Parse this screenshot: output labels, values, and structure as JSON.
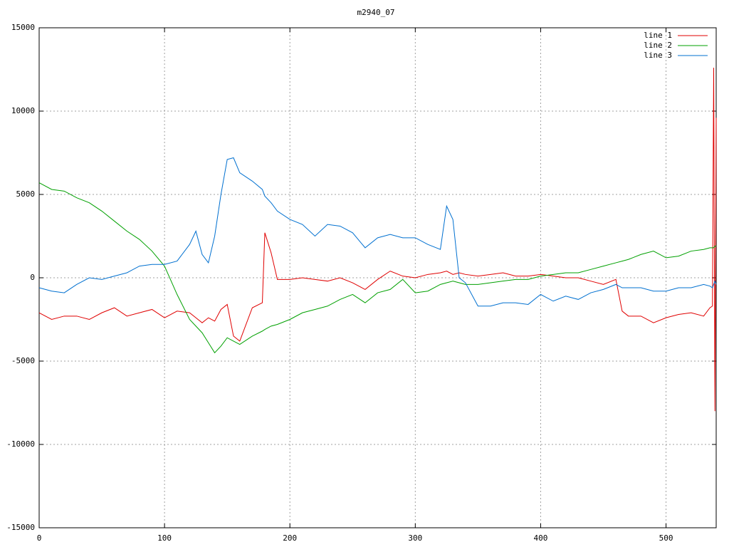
{
  "chart_data": {
    "type": "line",
    "title": "m2940_07",
    "xlim": [
      0,
      540
    ],
    "ylim": [
      -15000,
      15000
    ],
    "xticks": [
      0,
      100,
      200,
      300,
      400,
      500
    ],
    "yticks": [
      -15000,
      -10000,
      -5000,
      0,
      5000,
      10000,
      15000
    ],
    "grid": true,
    "legend": "top-right",
    "x": [
      0,
      10,
      20,
      30,
      40,
      50,
      60,
      70,
      80,
      90,
      100,
      110,
      120,
      125,
      130,
      135,
      140,
      145,
      150,
      155,
      160,
      170,
      178,
      180,
      185,
      190,
      200,
      210,
      220,
      230,
      240,
      250,
      260,
      270,
      280,
      290,
      300,
      310,
      320,
      325,
      330,
      335,
      340,
      350,
      360,
      370,
      380,
      390,
      400,
      410,
      420,
      430,
      440,
      450,
      460,
      465,
      470,
      480,
      490,
      500,
      510,
      520,
      530,
      535,
      537,
      538,
      539,
      540
    ],
    "series": [
      {
        "name": "line 1",
        "color": "#e00000",
        "values": [
          -2100,
          -2500,
          -2300,
          -2300,
          -2500,
          -2100,
          -1800,
          -2300,
          -2100,
          -1900,
          -2400,
          -2000,
          -2100,
          -2400,
          -2700,
          -2400,
          -2600,
          -1900,
          -1600,
          -3500,
          -3800,
          -1800,
          -1500,
          2700,
          1500,
          -100,
          -100,
          0,
          -100,
          -200,
          0,
          -300,
          -700,
          -100,
          400,
          100,
          0,
          200,
          300,
          400,
          200,
          300,
          200,
          100,
          200,
          300,
          100,
          100,
          200,
          100,
          0,
          0,
          -200,
          -400,
          -100,
          -2000,
          -2300,
          -2300,
          -2700,
          -2400,
          -2200,
          -2100,
          -2300,
          -1800,
          -1700,
          12600,
          -8000,
          9600
        ]
      },
      {
        "name": "line 2",
        "color": "#00a000",
        "values": [
          5700,
          5300,
          5200,
          4800,
          4500,
          4000,
          3400,
          2800,
          2300,
          1600,
          700,
          -1000,
          -2500,
          -2900,
          -3300,
          -3900,
          -4500,
          -4100,
          -3600,
          -3800,
          -4000,
          -3500,
          -3200,
          -3100,
          -2900,
          -2800,
          -2500,
          -2100,
          -1900,
          -1700,
          -1300,
          -1000,
          -1500,
          -900,
          -700,
          -100,
          -900,
          -800,
          -400,
          -300,
          -200,
          -300,
          -400,
          -400,
          -300,
          -200,
          -100,
          -100,
          100,
          200,
          300,
          300,
          500,
          700,
          900,
          1000,
          1100,
          1400,
          1600,
          1200,
          1300,
          1600,
          1700,
          1800,
          1800,
          1800,
          1900,
          1900
        ]
      },
      {
        "name": "line 3",
        "color": "#0070d0",
        "values": [
          -600,
          -800,
          -900,
          -400,
          0,
          -100,
          100,
          300,
          700,
          800,
          800,
          1000,
          2000,
          2800,
          1400,
          900,
          2500,
          5000,
          7100,
          7200,
          6300,
          5800,
          5300,
          4900,
          4500,
          4000,
          3500,
          3200,
          2500,
          3200,
          3100,
          2700,
          1800,
          2400,
          2600,
          2400,
          2400,
          2000,
          1700,
          4300,
          3500,
          0,
          -300,
          -1700,
          -1700,
          -1500,
          -1500,
          -1600,
          -1000,
          -1400,
          -1100,
          -1300,
          -900,
          -700,
          -400,
          -600,
          -600,
          -600,
          -800,
          -800,
          -600,
          -600,
          -400,
          -500,
          -600,
          -400,
          -200,
          -400
        ]
      }
    ]
  }
}
